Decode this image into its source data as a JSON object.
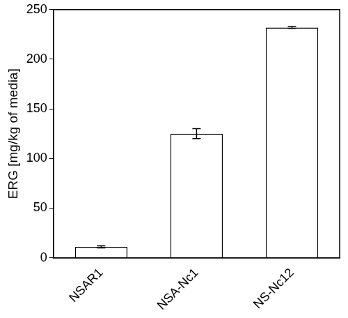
{
  "chart_data": {
    "type": "bar",
    "categories": [
      "NSAR1",
      "NSA-Nc1",
      "NS-Nc12"
    ],
    "values": [
      11,
      125,
      232
    ],
    "errors": [
      1,
      5,
      1
    ],
    "color": "#ffffff",
    "y_label": "ERG [mg/kg of media]",
    "ylim": [
      0,
      250
    ],
    "yticks": [
      0,
      50,
      100,
      150,
      200,
      250
    ],
    "grid": false
  }
}
